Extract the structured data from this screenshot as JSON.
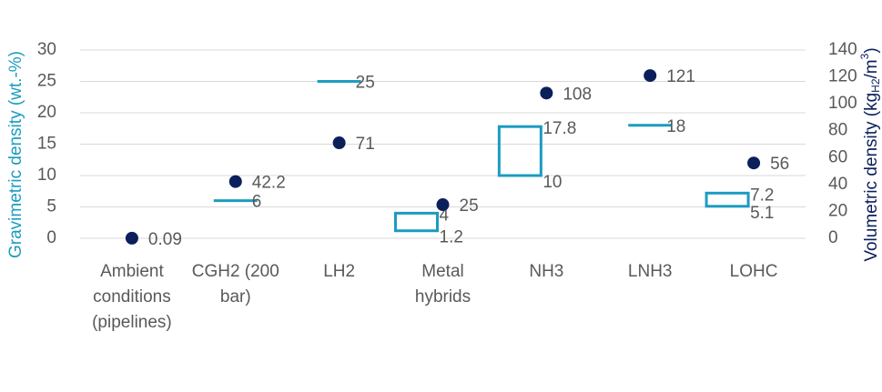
{
  "chart_data": {
    "type": "range-dot",
    "categories": [
      [
        "Ambient",
        "conditions",
        "(pipelines)"
      ],
      [
        "CGH2 (200",
        "bar)"
      ],
      [
        "LH2"
      ],
      [
        "Metal",
        "hybrids"
      ],
      [
        "NH3"
      ],
      [
        "LNH3"
      ],
      [
        "LOHC"
      ]
    ],
    "gravimetric_low": [
      null,
      6,
      25,
      1.2,
      10,
      18,
      5.1
    ],
    "gravimetric_high": [
      null,
      null,
      null,
      4,
      17.8,
      null,
      7.2
    ],
    "gravimetric_color": "#1b9cc0",
    "volumetric": [
      0.09,
      42.2,
      71,
      25,
      108,
      121,
      56
    ],
    "volumetric_color": "#0b1f5b",
    "y_label": "Gravimetric density (wt.-%)",
    "y2_label": [
      "Volumetric density (kg",
      "H2",
      "/m",
      "3",
      ")"
    ],
    "ylim": [
      0,
      30
    ],
    "yticks": [
      0,
      5,
      10,
      15,
      20,
      25,
      30
    ],
    "y2lim": [
      0,
      140
    ],
    "y2ticks": [
      0,
      20,
      40,
      60,
      80,
      100,
      120,
      140
    ],
    "grid": true
  }
}
